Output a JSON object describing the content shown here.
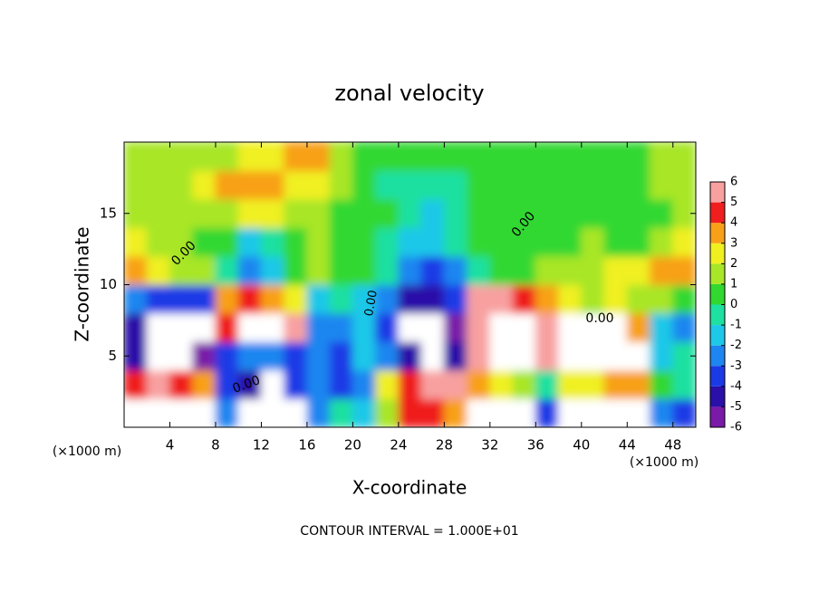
{
  "chart_data": {
    "type": "heatmap",
    "title": "zonal velocity",
    "xlabel": "X-coordinate",
    "ylabel": "Z-coordinate",
    "x_unit_label": "(×1000 m)",
    "y_unit_label": "(×1000 m)",
    "footer": "CONTOUR INTERVAL = 1.000E+01",
    "contour_labels": [
      "0.00",
      "0.00",
      "0.00",
      "0.00",
      "0.00"
    ],
    "x": [
      1,
      3,
      5,
      7,
      9,
      11,
      13,
      15,
      17,
      19,
      21,
      23,
      25,
      27,
      29,
      31,
      33,
      35,
      37,
      39,
      41,
      43,
      45,
      47,
      49
    ],
    "y": [
      1,
      3,
      5,
      7,
      9,
      11,
      13,
      15,
      17,
      19
    ],
    "z": [
      [
        8,
        9,
        9,
        9,
        -3,
        -8,
        -8,
        -8,
        -3,
        -1,
        -2,
        1,
        4,
        4,
        3,
        9,
        9,
        8,
        -4,
        8,
        9,
        9,
        8,
        -3,
        -4
      ],
      [
        4,
        5,
        4,
        3,
        -4,
        -5,
        -8,
        -4,
        -3,
        -4,
        -3,
        2,
        4,
        5,
        5,
        3,
        2,
        1,
        -1,
        2,
        2,
        3,
        3,
        0,
        -1
      ],
      [
        -5,
        -7,
        -9,
        -6,
        -4,
        -3,
        -3,
        -4,
        -3,
        -4,
        -2,
        -3,
        -5,
        -8,
        -5,
        5,
        9,
        9,
        5,
        9,
        9,
        9,
        9,
        -2,
        -1
      ],
      [
        -5,
        -9,
        -9,
        -7,
        4,
        9,
        9,
        5,
        -3,
        -3,
        -2,
        -4,
        -7,
        -9,
        -6,
        5,
        9,
        9,
        6,
        9,
        9,
        7,
        3,
        -2,
        -3
      ],
      [
        -3,
        -4,
        -4,
        -4,
        3,
        4,
        3,
        2,
        -2,
        -1,
        -2,
        -3,
        -5,
        -5,
        -4,
        5,
        5,
        4,
        3,
        2,
        1,
        2,
        1,
        1,
        0
      ],
      [
        3,
        2,
        1,
        1,
        -1,
        -3,
        -2,
        0,
        1,
        0,
        0,
        -1,
        -3,
        -4,
        -3,
        -1,
        0,
        0,
        1,
        1,
        1,
        2,
        2,
        3,
        3
      ],
      [
        2,
        1,
        1,
        0,
        0,
        -2,
        -1,
        0,
        1,
        0,
        0,
        -1,
        -2,
        -2,
        -1,
        0,
        0,
        0,
        0,
        0,
        1,
        0,
        0,
        1,
        2
      ],
      [
        1,
        1,
        1,
        1,
        1,
        2,
        2,
        1,
        1,
        0,
        0,
        0,
        -1,
        -2,
        -1,
        0,
        0,
        0,
        0,
        0,
        0,
        0,
        0,
        0,
        1
      ],
      [
        1,
        1,
        1,
        2,
        3,
        3,
        3,
        2,
        2,
        1,
        0,
        -1,
        -1,
        -1,
        -1,
        0,
        0,
        0,
        0,
        0,
        0,
        0,
        0,
        1,
        1
      ],
      [
        1,
        1,
        1,
        1,
        1,
        2,
        2,
        3,
        3,
        1,
        0,
        0,
        0,
        0,
        0,
        0,
        0,
        0,
        0,
        0,
        0,
        0,
        0,
        1,
        1
      ]
    ],
    "xlim": [
      0,
      50
    ],
    "ylim": [
      0,
      20
    ],
    "xticks": [
      4,
      8,
      12,
      16,
      20,
      24,
      28,
      32,
      36,
      40,
      44,
      48
    ],
    "yticks": [
      5,
      10,
      15
    ],
    "colorbar_ticks": [
      -6,
      -5,
      -4,
      -3,
      -2,
      -1,
      0,
      1,
      2,
      3,
      4,
      5,
      6
    ],
    "colorbar_colors": [
      "#7a1aa8",
      "#2a10a8",
      "#1a3ae6",
      "#1e86f0",
      "#1ec8e8",
      "#1ee0a0",
      "#30d830",
      "#a8e628",
      "#f0f020",
      "#f8a018",
      "#f01e1e",
      "#f8a0a0"
    ],
    "out_of_range_color": "#ffffff"
  }
}
